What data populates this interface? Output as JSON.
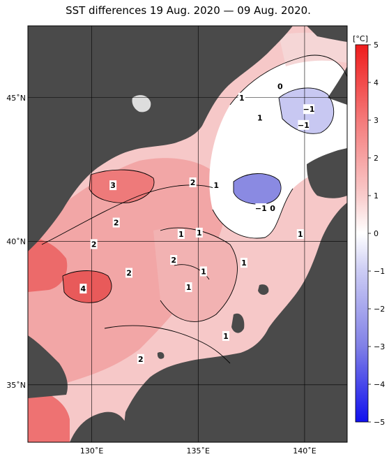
{
  "title": "SST differences 19 Aug. 2020 — 09 Aug. 2020.",
  "map": {
    "lon_range": [
      127,
      142
    ],
    "lat_range": [
      33,
      47.5
    ],
    "lon_ticks": [
      {
        "value": 130,
        "label": "130˚E"
      },
      {
        "value": 135,
        "label": "135˚E"
      },
      {
        "value": 140,
        "label": "140˚E"
      }
    ],
    "lat_ticks": [
      {
        "value": 35,
        "label": "35˚N"
      },
      {
        "value": 40,
        "label": "40˚N"
      },
      {
        "value": 45,
        "label": "45˚N"
      }
    ],
    "colors": {
      "land": "#4a4a4a",
      "sea_warm_light": "#f6c8c8",
      "sea_warm": "#f0a0a0",
      "sea_hot": "#e85050",
      "sea_cool": "#b8b8ee",
      "sea_cold": "#7a7ae0"
    },
    "contour_labels": [
      {
        "text": "3",
        "lon": 131.0,
        "lat": 41.95
      },
      {
        "text": "2",
        "lon": 134.75,
        "lat": 42.05
      },
      {
        "text": "1",
        "lon": 135.85,
        "lat": 41.95
      },
      {
        "text": "2",
        "lon": 131.15,
        "lat": 40.65
      },
      {
        "text": "2",
        "lon": 130.1,
        "lat": 39.9
      },
      {
        "text": "1",
        "lon": 134.2,
        "lat": 40.25
      },
      {
        "text": "1",
        "lon": 135.05,
        "lat": 40.3
      },
      {
        "text": "2",
        "lon": 133.85,
        "lat": 39.35
      },
      {
        "text": "1",
        "lon": 135.25,
        "lat": 38.95
      },
      {
        "text": "1",
        "lon": 137.15,
        "lat": 39.25
      },
      {
        "text": "2",
        "lon": 131.75,
        "lat": 38.9
      },
      {
        "text": "4",
        "lon": 129.6,
        "lat": 38.35
      },
      {
        "text": "1",
        "lon": 134.55,
        "lat": 38.4
      },
      {
        "text": "1",
        "lon": 136.3,
        "lat": 36.7
      },
      {
        "text": "2",
        "lon": 132.3,
        "lat": 35.9
      },
      {
        "text": "1",
        "lon": 139.8,
        "lat": 40.25
      },
      {
        "text": "1",
        "lon": 137.05,
        "lat": 45.0
      },
      {
        "text": "0",
        "lon": 138.85,
        "lat": 45.4
      },
      {
        "text": "1",
        "lon": 137.9,
        "lat": 44.3
      },
      {
        "text": "−1",
        "lon": 140.2,
        "lat": 44.6
      },
      {
        "text": "−1",
        "lon": 139.95,
        "lat": 44.05
      },
      {
        "text": "−1",
        "lon": 137.95,
        "lat": 41.15
      },
      {
        "text": "0",
        "lon": 138.5,
        "lat": 41.15
      }
    ]
  },
  "colorbar": {
    "unit": "[°C]",
    "min": -5,
    "max": 5,
    "ticks": [
      "5",
      "4",
      "3",
      "2",
      "1",
      "0",
      "−1",
      "−2",
      "−3",
      "−4",
      "−5"
    ],
    "stops": [
      {
        "value": 5,
        "color": "#ee1c1c"
      },
      {
        "value": 3,
        "color": "#f47a7a"
      },
      {
        "value": 1,
        "color": "#f9cccc"
      },
      {
        "value": 0,
        "color": "#ffffff"
      },
      {
        "value": -1,
        "color": "#ccccf4"
      },
      {
        "value": -3,
        "color": "#8080e6"
      },
      {
        "value": -5,
        "color": "#1010ee"
      }
    ]
  }
}
